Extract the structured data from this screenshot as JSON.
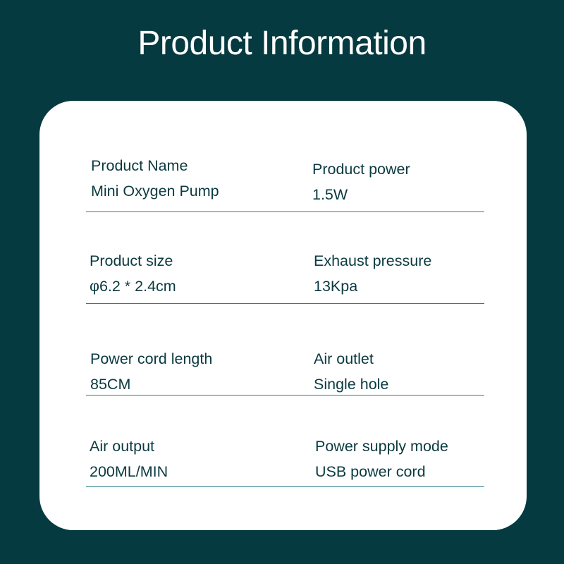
{
  "header": {
    "title": "Product Information"
  },
  "colors": {
    "background": "#053a40",
    "card": "#ffffff",
    "text": "#0a3a40",
    "divider": "#2c7f88"
  },
  "specs": [
    {
      "label": "Product Name",
      "value": "Mini Oxygen Pump"
    },
    {
      "label": "Product power",
      "value": "1.5W"
    },
    {
      "label": "Product size",
      "value": "φ6.2 * 2.4cm"
    },
    {
      "label": "Exhaust pressure",
      "value": "13Kpa"
    },
    {
      "label": "Power cord length",
      "value": "85CM"
    },
    {
      "label": "Air outlet",
      "value": "Single hole"
    },
    {
      "label": "Air output",
      "value": "200ML/MIN"
    },
    {
      "label": "Power supply mode",
      "value": "USB power cord"
    }
  ]
}
